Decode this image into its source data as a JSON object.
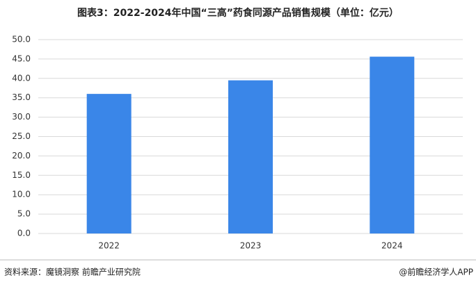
{
  "chart_data": {
    "type": "bar",
    "title": "图表3：2022-2024年中国“三高”药食同源产品销售规模（单位：亿元）",
    "categories": [
      "2022",
      "2023",
      "2024"
    ],
    "values": [
      36.0,
      39.5,
      45.6
    ],
    "color": "#3a86e8",
    "ylim": [
      0,
      50
    ],
    "yticks": [
      {
        "value": 0,
        "label": "0.0"
      },
      {
        "value": 5,
        "label": "5.0"
      },
      {
        "value": 10,
        "label": "10.0"
      },
      {
        "value": 15,
        "label": "15.0"
      },
      {
        "value": 20,
        "label": "20.0"
      },
      {
        "value": 25,
        "label": "25.0"
      },
      {
        "value": 30,
        "label": "30.0"
      },
      {
        "value": 35,
        "label": "35.0"
      },
      {
        "value": 40,
        "label": "40.0"
      },
      {
        "value": 45,
        "label": "45.0"
      },
      {
        "value": 50,
        "label": "50.0"
      }
    ],
    "grid": true,
    "source": "资料来源：魔镜洞察  前瞻产业研究院",
    "credit": "@前瞻经济学人APP"
  }
}
